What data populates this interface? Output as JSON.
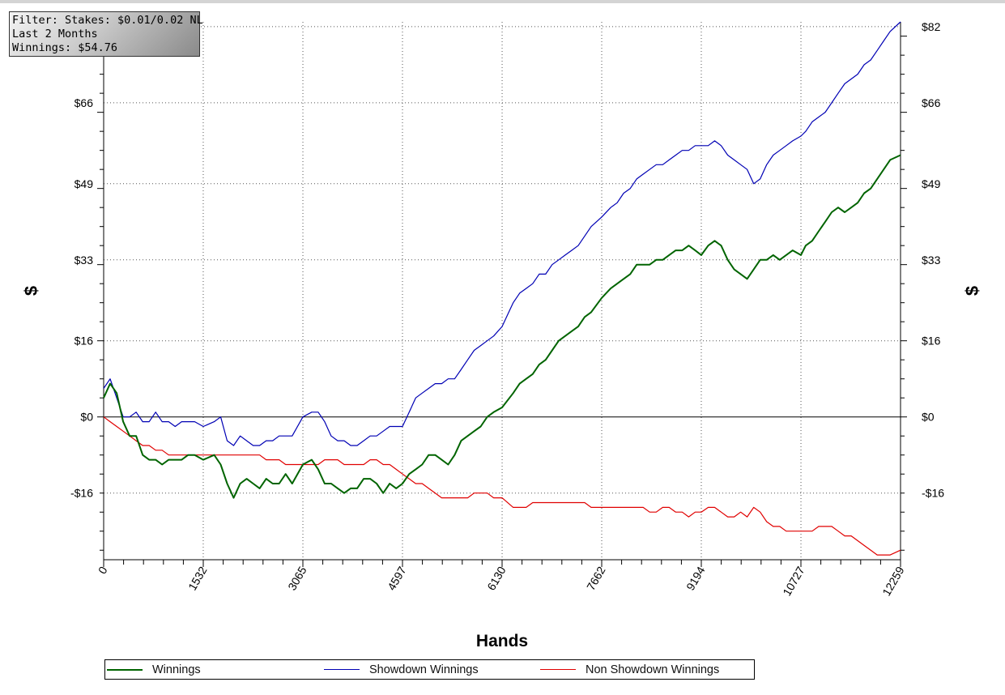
{
  "filter": {
    "line1": "Filter: Stakes: $0.01/0.02 NL",
    "line2": "Last  2 Months",
    "line3": "Winnings: $54.76"
  },
  "chart_data": {
    "type": "line",
    "xlabel": "Hands",
    "ylabel": "$",
    "xlim": [
      0,
      12259
    ],
    "ylim": [
      -30,
      83
    ],
    "x_ticks": [
      0,
      1532,
      3065,
      4597,
      6130,
      7662,
      9194,
      10727,
      12259
    ],
    "y_ticks": [
      {
        "value": -16,
        "label": "-$16"
      },
      {
        "value": 0,
        "label": "$0"
      },
      {
        "value": 16,
        "label": "$16"
      },
      {
        "value": 33,
        "label": "$33"
      },
      {
        "value": 49,
        "label": "$49"
      },
      {
        "value": 66,
        "label": "$66"
      },
      {
        "value": 82,
        "label": "$82"
      }
    ],
    "grid": true,
    "legend_position": "bottom",
    "series": [
      {
        "name": "Winnings",
        "color": "#006400",
        "x": [
          0,
          100,
          200,
          300,
          400,
          500,
          600,
          700,
          800,
          900,
          1000,
          1100,
          1200,
          1300,
          1400,
          1532,
          1700,
          1800,
          1900,
          2000,
          2100,
          2200,
          2300,
          2400,
          2500,
          2600,
          2700,
          2800,
          2900,
          3065,
          3200,
          3300,
          3400,
          3500,
          3600,
          3700,
          3800,
          3900,
          4000,
          4100,
          4200,
          4300,
          4400,
          4500,
          4597,
          4700,
          4800,
          4900,
          5000,
          5100,
          5200,
          5300,
          5400,
          5500,
          5600,
          5700,
          5800,
          5900,
          6000,
          6130,
          6300,
          6400,
          6500,
          6600,
          6700,
          6800,
          6900,
          7000,
          7100,
          7200,
          7300,
          7400,
          7500,
          7662,
          7800,
          7900,
          8000,
          8100,
          8200,
          8300,
          8400,
          8500,
          8600,
          8700,
          8800,
          8900,
          9000,
          9100,
          9194,
          9300,
          9400,
          9500,
          9600,
          9700,
          9800,
          9900,
          10000,
          10100,
          10200,
          10300,
          10400,
          10500,
          10600,
          10727,
          10800,
          10900,
          11000,
          11100,
          11200,
          11300,
          11400,
          11500,
          11600,
          11700,
          11800,
          11900,
          12000,
          12100,
          12259
        ],
        "y": [
          4,
          7,
          5,
          -1,
          -4,
          -4,
          -8,
          -9,
          -9,
          -10,
          -9,
          -9,
          -9,
          -8,
          -8,
          -9,
          -8,
          -10,
          -14,
          -17,
          -14,
          -13,
          -14,
          -15,
          -13,
          -14,
          -14,
          -12,
          -14,
          -10,
          -9,
          -11,
          -14,
          -14,
          -15,
          -16,
          -15,
          -15,
          -13,
          -13,
          -14,
          -16,
          -14,
          -15,
          -14,
          -12,
          -11,
          -10,
          -8,
          -8,
          -9,
          -10,
          -8,
          -5,
          -4,
          -3,
          -2,
          0,
          1,
          2,
          5,
          7,
          8,
          9,
          11,
          12,
          14,
          16,
          17,
          18,
          19,
          21,
          22,
          25,
          27,
          28,
          29,
          30,
          32,
          32,
          32,
          33,
          33,
          34,
          35,
          35,
          36,
          35,
          34,
          36,
          37,
          36,
          33,
          31,
          30,
          29,
          31,
          33,
          33,
          34,
          33,
          34,
          35,
          34,
          36,
          37,
          39,
          41,
          43,
          44,
          43,
          44,
          45,
          47,
          48,
          50,
          52,
          54,
          55
        ]
      },
      {
        "name": "Showdown Winnings",
        "color": "#0000b4",
        "x": [
          0,
          100,
          200,
          300,
          400,
          500,
          600,
          700,
          800,
          900,
          1000,
          1100,
          1200,
          1300,
          1400,
          1532,
          1700,
          1800,
          1900,
          2000,
          2100,
          2200,
          2300,
          2400,
          2500,
          2600,
          2700,
          2800,
          2900,
          3065,
          3200,
          3300,
          3400,
          3500,
          3600,
          3700,
          3800,
          3900,
          4000,
          4100,
          4200,
          4300,
          4400,
          4500,
          4597,
          4700,
          4800,
          4900,
          5000,
          5100,
          5200,
          5300,
          5400,
          5500,
          5600,
          5700,
          5800,
          5900,
          6000,
          6130,
          6300,
          6400,
          6500,
          6600,
          6700,
          6800,
          6900,
          7000,
          7100,
          7200,
          7300,
          7400,
          7500,
          7662,
          7800,
          7900,
          8000,
          8100,
          8200,
          8300,
          8400,
          8500,
          8600,
          8700,
          8800,
          8900,
          9000,
          9100,
          9194,
          9300,
          9400,
          9500,
          9600,
          9700,
          9800,
          9900,
          10000,
          10100,
          10200,
          10300,
          10400,
          10500,
          10600,
          10727,
          10800,
          10900,
          11000,
          11100,
          11200,
          11300,
          11400,
          11500,
          11600,
          11700,
          11800,
          11900,
          12000,
          12100,
          12259
        ],
        "y": [
          6,
          8,
          4,
          0,
          0,
          1,
          -1,
          -1,
          1,
          -1,
          -1,
          -2,
          -1,
          -1,
          -1,
          -2,
          -1,
          0,
          -5,
          -6,
          -4,
          -5,
          -6,
          -6,
          -5,
          -5,
          -4,
          -4,
          -4,
          0,
          1,
          1,
          -1,
          -4,
          -5,
          -5,
          -6,
          -6,
          -5,
          -4,
          -4,
          -3,
          -2,
          -2,
          -2,
          1,
          4,
          5,
          6,
          7,
          7,
          8,
          8,
          10,
          12,
          14,
          15,
          16,
          17,
          19,
          24,
          26,
          27,
          28,
          30,
          30,
          32,
          33,
          34,
          35,
          36,
          38,
          40,
          42,
          44,
          45,
          47,
          48,
          50,
          51,
          52,
          53,
          53,
          54,
          55,
          56,
          56,
          57,
          57,
          57,
          58,
          57,
          55,
          54,
          53,
          52,
          49,
          50,
          53,
          55,
          56,
          57,
          58,
          59,
          60,
          62,
          63,
          64,
          66,
          68,
          70,
          71,
          72,
          74,
          75,
          77,
          79,
          81,
          83
        ]
      },
      {
        "name": "Non Showdown Winnings",
        "color": "#e00000",
        "x": [
          0,
          100,
          200,
          300,
          400,
          500,
          600,
          700,
          800,
          900,
          1000,
          1100,
          1200,
          1300,
          1400,
          1532,
          1700,
          1800,
          1900,
          2000,
          2100,
          2200,
          2300,
          2400,
          2500,
          2600,
          2700,
          2800,
          2900,
          3065,
          3200,
          3300,
          3400,
          3500,
          3600,
          3700,
          3800,
          3900,
          4000,
          4100,
          4200,
          4300,
          4400,
          4500,
          4597,
          4700,
          4800,
          4900,
          5000,
          5100,
          5200,
          5300,
          5400,
          5500,
          5600,
          5700,
          5800,
          5900,
          6000,
          6130,
          6300,
          6400,
          6500,
          6600,
          6700,
          6800,
          6900,
          7000,
          7100,
          7200,
          7300,
          7400,
          7500,
          7662,
          7800,
          7900,
          8000,
          8100,
          8200,
          8300,
          8400,
          8500,
          8600,
          8700,
          8800,
          8900,
          9000,
          9100,
          9194,
          9300,
          9400,
          9500,
          9600,
          9700,
          9800,
          9900,
          10000,
          10100,
          10200,
          10300,
          10400,
          10500,
          10600,
          10727,
          10800,
          10900,
          11000,
          11100,
          11200,
          11300,
          11400,
          11500,
          11600,
          11700,
          11800,
          11900,
          12000,
          12100,
          12259
        ],
        "y": [
          0,
          -1,
          -2,
          -3,
          -4,
          -5,
          -6,
          -6,
          -7,
          -7,
          -8,
          -8,
          -8,
          -8,
          -8,
          -8,
          -8,
          -8,
          -8,
          -8,
          -8,
          -8,
          -8,
          -8,
          -9,
          -9,
          -9,
          -10,
          -10,
          -10,
          -10,
          -10,
          -9,
          -9,
          -9,
          -10,
          -10,
          -10,
          -10,
          -9,
          -9,
          -10,
          -10,
          -11,
          -12,
          -13,
          -14,
          -14,
          -15,
          -16,
          -17,
          -17,
          -17,
          -17,
          -17,
          -16,
          -16,
          -16,
          -17,
          -17,
          -19,
          -19,
          -19,
          -18,
          -18,
          -18,
          -18,
          -18,
          -18,
          -18,
          -18,
          -18,
          -19,
          -19,
          -19,
          -19,
          -19,
          -19,
          -19,
          -19,
          -20,
          -20,
          -19,
          -19,
          -20,
          -20,
          -21,
          -20,
          -20,
          -19,
          -19,
          -20,
          -21,
          -21,
          -20,
          -21,
          -19,
          -20,
          -22,
          -23,
          -23,
          -24,
          -24,
          -24,
          -24,
          -24,
          -23,
          -23,
          -23,
          -24,
          -25,
          -25,
          -26,
          -27,
          -28,
          -29,
          -29,
          -29,
          -28
        ]
      }
    ]
  }
}
